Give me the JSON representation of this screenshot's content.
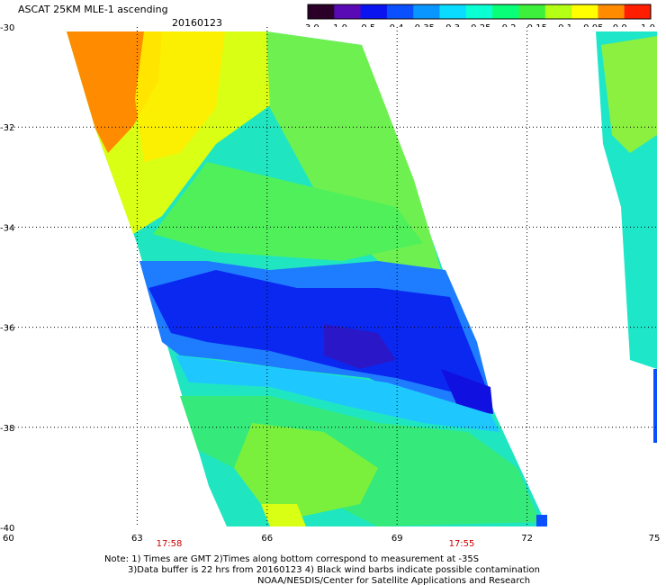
{
  "title": "ASCAT 25KM MLE-1 ascending",
  "date": "20160123",
  "colorbar": {
    "ticks": [
      "-3.0",
      "-1.0",
      "-0.5",
      "-0.4",
      "-0.35",
      "-0.3",
      "-0.25",
      "-0.2",
      "-0.15",
      "-0.1",
      "-0.05",
      "0.0",
      "1.0"
    ],
    "colors": [
      "#2a0028",
      "#5a0ab4",
      "#0a14f0",
      "#0a50ff",
      "#0a96ff",
      "#0adcff",
      "#0affd2",
      "#0aff78",
      "#3cf03c",
      "#b4ff14",
      "#ffff00",
      "#ff8c00",
      "#ff1e00"
    ]
  },
  "map": {
    "lat_range": [
      -40,
      -30
    ],
    "lon_range": [
      60,
      75
    ],
    "y_tick_labels": [
      "-30",
      "-32",
      "-34",
      "-36",
      "-38",
      "-40"
    ],
    "x_tick_labels": [
      "60",
      "63",
      "66",
      "69",
      "72",
      "75"
    ],
    "times": [
      "17:58",
      "17:55"
    ]
  },
  "notes": [
    "Note: 1) Times are GMT 2)Times along bottom correspond to measurement at -35S",
    "3)Data buffer is 22 hrs from 20160123 4) Black wind barbs indicate possible contamination",
    "NOAA/NESDIS/Center for Satellite Applications and Research"
  ]
}
